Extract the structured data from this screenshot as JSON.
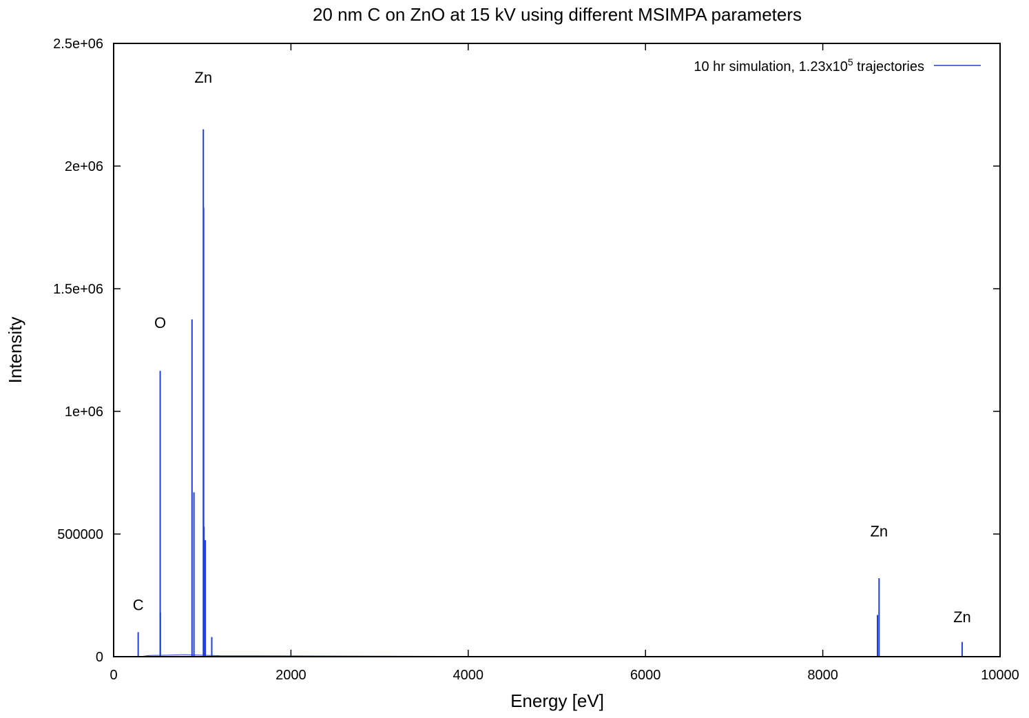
{
  "chart_data": {
    "type": "line",
    "title": "20 nm C on ZnO at 15 kV using different MSIMPA parameters",
    "xlabel": "Energy [eV]",
    "ylabel": "Intensity",
    "xlim": [
      0,
      10000
    ],
    "ylim": [
      0,
      2500000
    ],
    "x_ticks": [
      0,
      2000,
      4000,
      6000,
      8000,
      10000
    ],
    "x_tick_labels": [
      "0",
      "2000",
      "4000",
      "6000",
      "8000",
      "10000"
    ],
    "y_ticks": [
      0,
      500000,
      1000000,
      1500000,
      2000000,
      2500000
    ],
    "y_tick_labels": [
      "0",
      "500000",
      "1e+06",
      "1.5e+06",
      "2e+06",
      "2.5e+06"
    ],
    "grid": false,
    "legend_position": "top-right",
    "series": [
      {
        "name_prefix": "10 hr simulation, 1.23x10",
        "name_superscript": "5",
        "name_suffix": " trajectories",
        "color": "#1f3fd6",
        "peaks": [
          {
            "x": 277,
            "y": 100000
          },
          {
            "x": 525,
            "y": 1165000
          },
          {
            "x": 527,
            "y": 180000
          },
          {
            "x": 884,
            "y": 1375000
          },
          {
            "x": 906,
            "y": 670000
          },
          {
            "x": 1012,
            "y": 2150000
          },
          {
            "x": 1015,
            "y": 1830000
          },
          {
            "x": 1019,
            "y": 530000
          },
          {
            "x": 1034,
            "y": 475000
          },
          {
            "x": 1107,
            "y": 80000
          },
          {
            "x": 8617,
            "y": 170000
          },
          {
            "x": 8635,
            "y": 320000
          },
          {
            "x": 9572,
            "y": 60000
          }
        ],
        "baseline": [
          {
            "x": 300,
            "y": 0
          },
          {
            "x": 400,
            "y": 5000
          },
          {
            "x": 600,
            "y": 6000
          },
          {
            "x": 800,
            "y": 8000
          },
          {
            "x": 1200,
            "y": 4000
          },
          {
            "x": 2000,
            "y": 3000
          },
          {
            "x": 3000,
            "y": 2000
          },
          {
            "x": 4000,
            "y": 1000
          },
          {
            "x": 6000,
            "y": 600
          },
          {
            "x": 8500,
            "y": 300
          },
          {
            "x": 10000,
            "y": 200
          }
        ]
      }
    ],
    "annotations": [
      {
        "text": "C",
        "x": 277,
        "y": 190000
      },
      {
        "text": "O",
        "x": 525,
        "y": 1340000
      },
      {
        "text": "Zn",
        "x": 1012,
        "y": 2340000
      },
      {
        "text": "Zn",
        "x": 8635,
        "y": 490000
      },
      {
        "text": "Zn",
        "x": 9572,
        "y": 140000
      }
    ]
  }
}
